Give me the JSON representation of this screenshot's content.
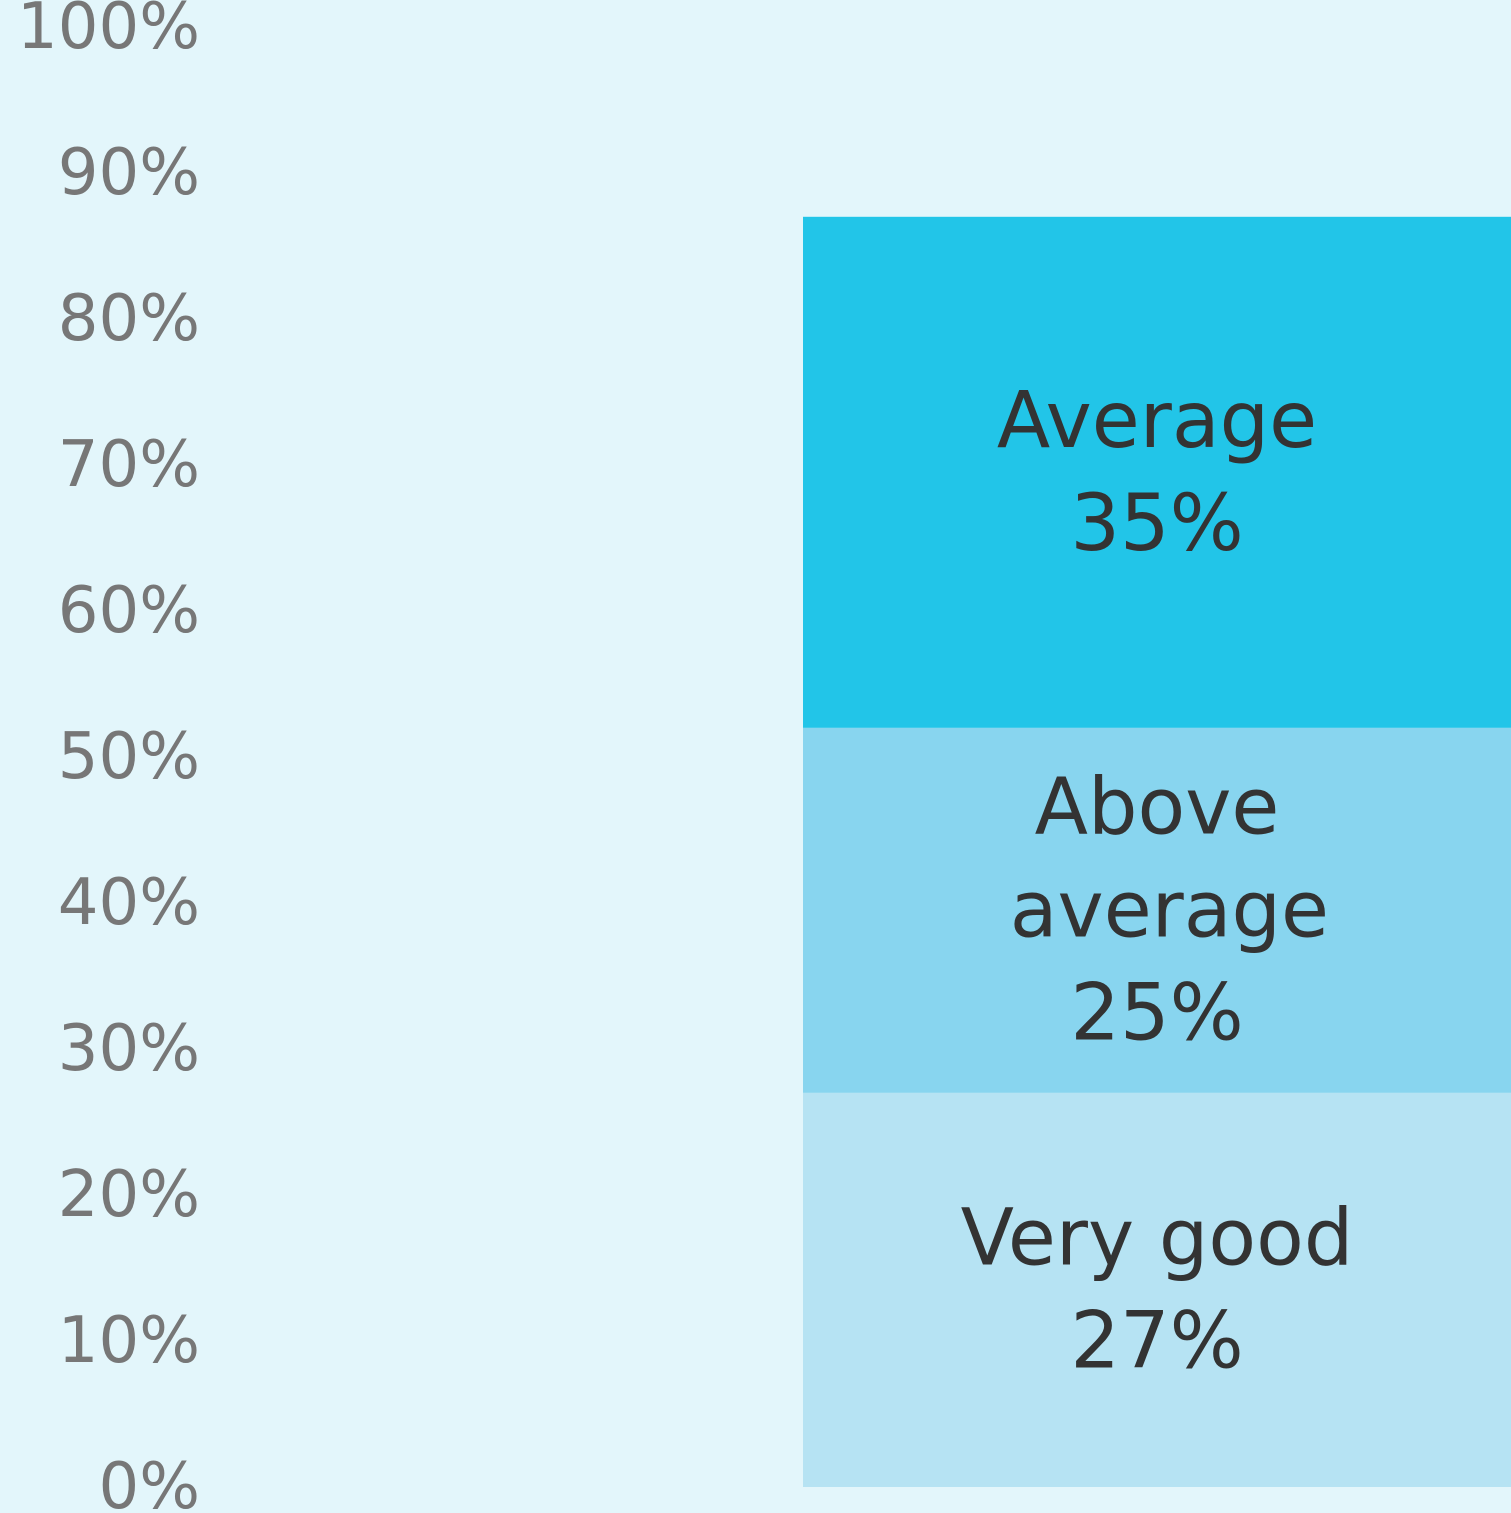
{
  "chart_data": {
    "type": "stacked_bar",
    "categories": [
      null
    ],
    "series": [
      {
        "name": "Very good",
        "color": "#b6e3f3",
        "values": [
          27
        ],
        "value_labels": [
          "27%"
        ]
      },
      {
        "name": "Above average",
        "color": "#88d5ef",
        "values": [
          25
        ],
        "value_labels": [
          "25%"
        ]
      },
      {
        "name": "Average",
        "color": "#22c5e8",
        "values": [
          35
        ],
        "value_labels": [
          "35%"
        ]
      }
    ],
    "ylim": [
      0,
      100
    ],
    "yticks": [
      {
        "value": 0,
        "label": "0%"
      },
      {
        "value": 10,
        "label": "10%"
      },
      {
        "value": 20,
        "label": "20%"
      },
      {
        "value": 30,
        "label": "30%"
      },
      {
        "value": 40,
        "label": "40%"
      },
      {
        "value": 50,
        "label": "50%"
      },
      {
        "value": 60,
        "label": "60%"
      },
      {
        "value": 70,
        "label": "70%"
      },
      {
        "value": 80,
        "label": "80%"
      },
      {
        "value": 90,
        "label": "90%"
      },
      {
        "value": 100,
        "label": "100%"
      }
    ]
  }
}
